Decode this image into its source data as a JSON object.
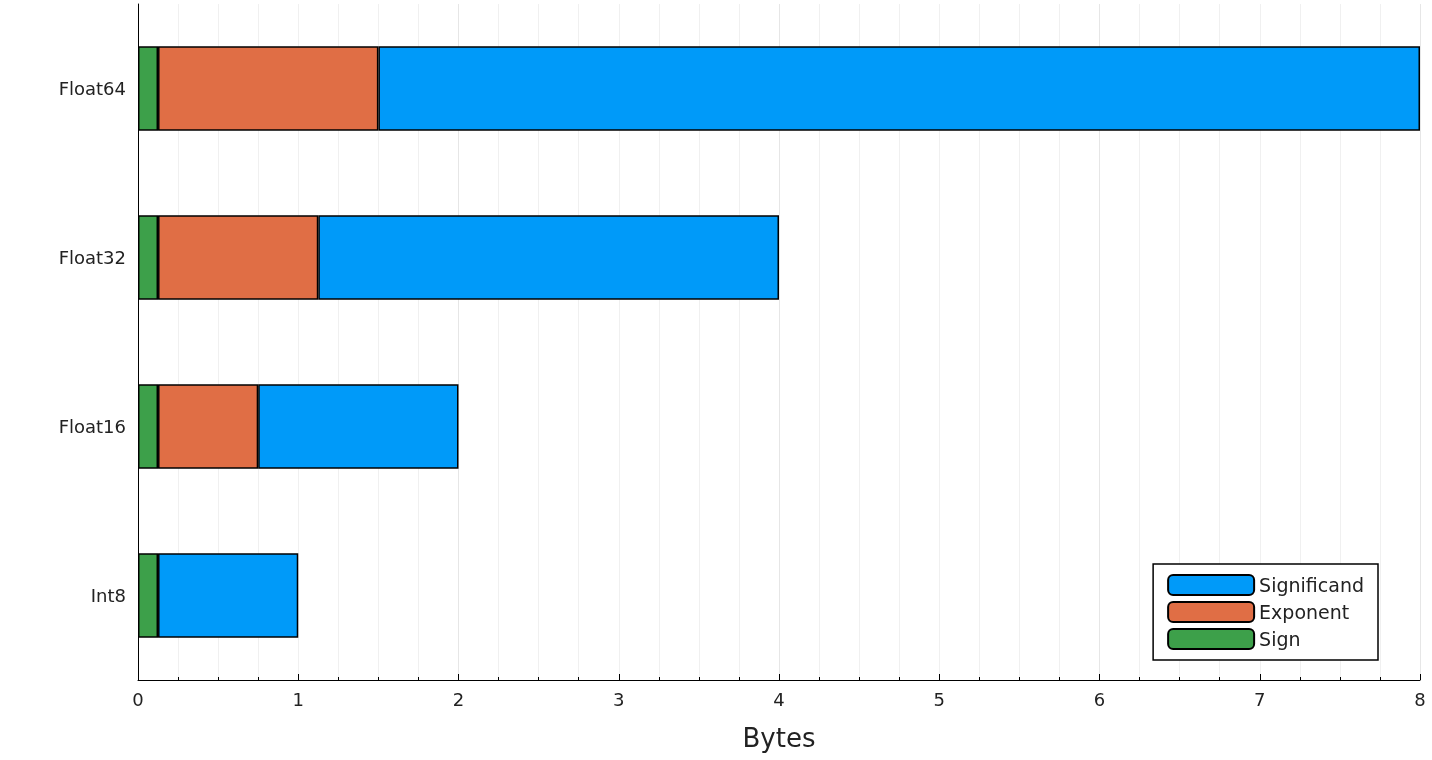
{
  "chart_data": {
    "type": "bar",
    "orientation": "horizontal",
    "stacked": true,
    "xlabel": "Bytes",
    "categories": [
      "Float64",
      "Float32",
      "Float16",
      "Int8"
    ],
    "series": [
      {
        "name": "Sign",
        "color": "#3da04a",
        "values": [
          0.125,
          0.125,
          0.125,
          0.125
        ]
      },
      {
        "name": "Exponent",
        "color": "#e06e45",
        "values": [
          1.375,
          1,
          0.625,
          null
        ]
      },
      {
        "name": "Significand",
        "color": "#009af9",
        "values": [
          6.5,
          2.875,
          1.25,
          0.875
        ]
      }
    ],
    "xlim": [
      0,
      8
    ],
    "xticks": [
      0,
      1,
      2,
      3,
      4,
      5,
      6,
      7,
      8
    ],
    "grid": "x",
    "legend": "bottom right"
  }
}
